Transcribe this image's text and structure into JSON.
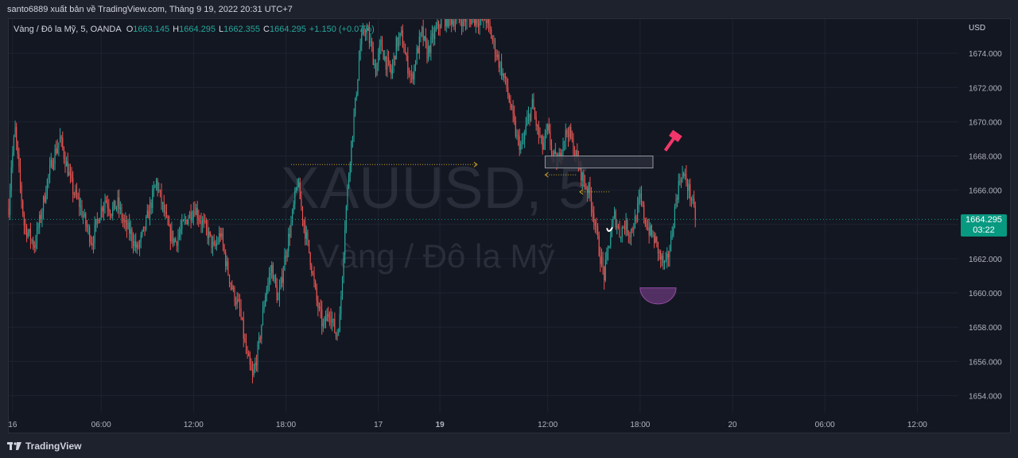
{
  "header": {
    "attribution": "santo6889 xuất bản về TradingView.com, Tháng 9 19, 2022 20:31 UTC+7"
  },
  "legend": {
    "symbol": "Vàng / Đô la Mỹ, 5, OANDA",
    "o_label": "O",
    "o_value": "1663.145",
    "h_label": "H",
    "h_value": "1664.295",
    "l_label": "L",
    "l_value": "1662.355",
    "c_label": "C",
    "c_value": "1664.295",
    "change": "+1.150 (+0.07%)"
  },
  "watermark": {
    "ticker": "XAUUSD, 5",
    "name": "Vàng / Đô la Mỹ"
  },
  "price_axis": {
    "currency": "USD",
    "current_price": "1664.295",
    "countdown": "03:22"
  },
  "footer": {
    "brand": "TradingView"
  },
  "colors": {
    "up": "#26a69a",
    "down": "#ef5350",
    "background": "#131722",
    "grid": "#1f2330",
    "annotation_pink": "#f23669",
    "annotation_purple": "#6a3a7a",
    "dotted_yellow": "#c9a227"
  },
  "chart_data": {
    "type": "candlestick",
    "symbol": "XAUUSD",
    "timeframe": "5",
    "ylim": [
      1653,
      1676
    ],
    "y_ticks": [
      {
        "label": "1674.000",
        "value": 1674
      },
      {
        "label": "1672.000",
        "value": 1672
      },
      {
        "label": "1670.000",
        "value": 1670
      },
      {
        "label": "1668.000",
        "value": 1668
      },
      {
        "label": "1666.000",
        "value": 1666
      },
      {
        "label": "1664.000",
        "value": 1664
      },
      {
        "label": "1662.000",
        "value": 1662
      },
      {
        "label": "1660.000",
        "value": 1660
      },
      {
        "label": "1658.000",
        "value": 1658
      },
      {
        "label": "1656.000",
        "value": 1656
      },
      {
        "label": "1654.000",
        "value": 1654
      }
    ],
    "x_ticks": [
      {
        "label": "16",
        "bar": 3,
        "bold": false
      },
      {
        "label": "06:00",
        "bar": 72,
        "bold": false
      },
      {
        "label": "12:00",
        "bar": 144,
        "bold": false
      },
      {
        "label": "18:00",
        "bar": 216,
        "bold": false
      },
      {
        "label": "17",
        "bar": 288,
        "bold": false
      },
      {
        "label": "19",
        "bar": 336,
        "bold": true
      },
      {
        "label": "12:00",
        "bar": 420,
        "bold": false
      },
      {
        "label": "18:00",
        "bar": 492,
        "bold": false
      },
      {
        "label": "20",
        "bar": 564,
        "bold": false
      },
      {
        "label": "06:00",
        "bar": 636,
        "bold": false
      },
      {
        "label": "12:00",
        "bar": 708,
        "bold": false
      }
    ],
    "x_range_bars": [
      0,
      740
    ],
    "last_price": 1664.295,
    "close_path": [
      [
        0,
        1665.0
      ],
      [
        2,
        1667.5
      ],
      [
        5,
        1669.5
      ],
      [
        8,
        1667.0
      ],
      [
        12,
        1664.0
      ],
      [
        15,
        1663.5
      ],
      [
        20,
        1662.8
      ],
      [
        25,
        1664.5
      ],
      [
        30,
        1666.5
      ],
      [
        35,
        1668.0
      ],
      [
        40,
        1669.0
      ],
      [
        45,
        1667.5
      ],
      [
        50,
        1666.0
      ],
      [
        55,
        1665.2
      ],
      [
        60,
        1664.0
      ],
      [
        65,
        1663.0
      ],
      [
        70,
        1664.5
      ],
      [
        75,
        1665.5
      ],
      [
        80,
        1664.8
      ],
      [
        85,
        1665.2
      ],
      [
        90,
        1664.0
      ],
      [
        95,
        1663.5
      ],
      [
        100,
        1662.5
      ],
      [
        105,
        1663.5
      ],
      [
        110,
        1665.0
      ],
      [
        115,
        1666.5
      ],
      [
        120,
        1665.0
      ],
      [
        125,
        1663.5
      ],
      [
        130,
        1663.0
      ],
      [
        135,
        1663.8
      ],
      [
        140,
        1664.5
      ],
      [
        145,
        1665.0
      ],
      [
        150,
        1664.2
      ],
      [
        155,
        1663.5
      ],
      [
        160,
        1662.5
      ],
      [
        165,
        1663.5
      ],
      [
        170,
        1661.5
      ],
      [
        175,
        1660.0
      ],
      [
        180,
        1659.0
      ],
      [
        185,
        1656.5
      ],
      [
        190,
        1655.0
      ],
      [
        195,
        1657.0
      ],
      [
        200,
        1660.0
      ],
      [
        205,
        1661.5
      ],
      [
        210,
        1659.5
      ],
      [
        215,
        1662.0
      ],
      [
        220,
        1664.0
      ],
      [
        225,
        1666.5
      ],
      [
        230,
        1664.0
      ],
      [
        235,
        1662.0
      ],
      [
        240,
        1659.5
      ],
      [
        245,
        1658.0
      ],
      [
        250,
        1659.0
      ],
      [
        255,
        1657.5
      ],
      [
        258,
        1658.5
      ],
      [
        262,
        1664.0
      ],
      [
        266,
        1668.0
      ],
      [
        270,
        1671.0
      ],
      [
        274,
        1674.5
      ],
      [
        278,
        1675.5
      ],
      [
        282,
        1674.5
      ],
      [
        286,
        1673.0
      ],
      [
        290,
        1674.5
      ],
      [
        294,
        1673.5
      ],
      [
        298,
        1672.8
      ],
      [
        302,
        1674.5
      ],
      [
        306,
        1675.0
      ],
      [
        310,
        1673.5
      ],
      [
        314,
        1672.5
      ],
      [
        318,
        1674.0
      ],
      [
        322,
        1675.2
      ],
      [
        326,
        1674.0
      ],
      [
        330,
        1674.8
      ],
      [
        334,
        1675.5
      ],
      [
        338,
        1676.0
      ],
      [
        342,
        1676.0
      ],
      [
        346,
        1676.0
      ],
      [
        350,
        1676.0
      ],
      [
        354,
        1676.0
      ],
      [
        360,
        1676.0
      ],
      [
        366,
        1676.0
      ],
      [
        372,
        1676.0
      ],
      [
        376,
        1675.0
      ],
      [
        380,
        1674.0
      ],
      [
        384,
        1673.0
      ],
      [
        388,
        1672.0
      ],
      [
        392,
        1670.5
      ],
      [
        396,
        1669.0
      ],
      [
        400,
        1668.5
      ],
      [
        404,
        1670.0
      ],
      [
        408,
        1671.0
      ],
      [
        412,
        1669.5
      ],
      [
        416,
        1668.5
      ],
      [
        420,
        1669.5
      ],
      [
        424,
        1668.0
      ],
      [
        428,
        1667.5
      ],
      [
        432,
        1669.0
      ],
      [
        436,
        1669.5
      ],
      [
        440,
        1668.5
      ],
      [
        444,
        1667.5
      ],
      [
        448,
        1666.5
      ],
      [
        452,
        1666.0
      ],
      [
        456,
        1664.5
      ],
      [
        460,
        1662.5
      ],
      [
        464,
        1661.0
      ],
      [
        468,
        1663.0
      ],
      [
        472,
        1664.5
      ],
      [
        476,
        1663.5
      ],
      [
        480,
        1664.0
      ],
      [
        484,
        1663.5
      ],
      [
        488,
        1664.2
      ],
      [
        492,
        1665.5
      ],
      [
        496,
        1664.2
      ],
      [
        500,
        1663.5
      ],
      [
        504,
        1663.0
      ],
      [
        508,
        1662.0
      ],
      [
        512,
        1661.5
      ],
      [
        516,
        1663.0
      ],
      [
        520,
        1665.5
      ],
      [
        524,
        1667.0
      ],
      [
        528,
        1666.5
      ],
      [
        532,
        1665.5
      ],
      [
        535,
        1664.3
      ]
    ],
    "annotations": [
      {
        "type": "dotted-arrow",
        "from": [
          220,
          1667.5
        ],
        "to": [
          365,
          1667.5
        ]
      },
      {
        "type": "rectangle",
        "x": [
          418,
          502
        ],
        "y": [
          1667.3,
          1668.0
        ]
      },
      {
        "type": "dotted-arrow",
        "from": [
          442,
          1666.9
        ],
        "to": [
          418,
          1666.9
        ]
      },
      {
        "type": "dotted-arrow",
        "from": [
          468,
          1665.9
        ],
        "to": [
          445,
          1665.9
        ]
      },
      {
        "type": "gavel-icon",
        "at": [
          518,
          1669.0
        ]
      },
      {
        "type": "smile-curve",
        "at": [
          468,
          1663.6
        ]
      },
      {
        "type": "half-circle",
        "x": [
          492,
          520
        ],
        "y": 1660.3
      }
    ]
  }
}
